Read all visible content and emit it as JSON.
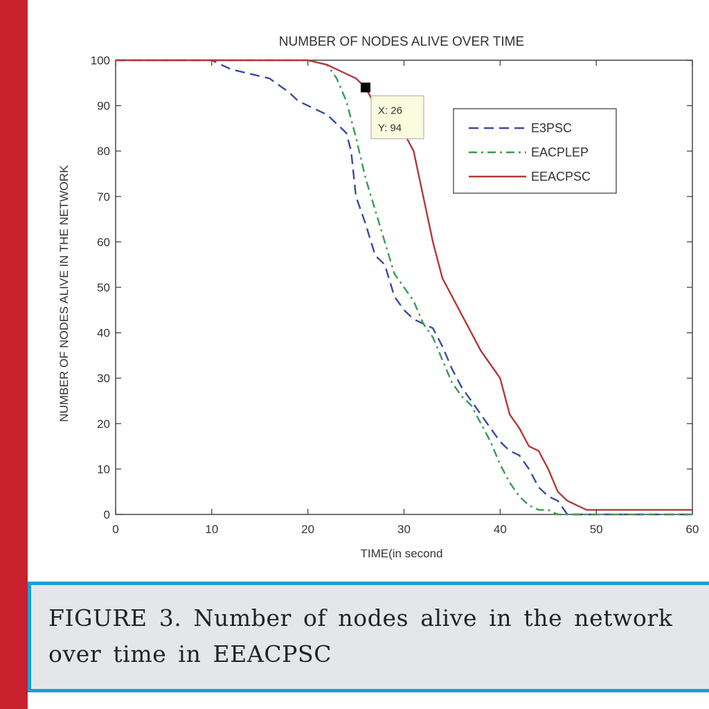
{
  "caption": {
    "line1": "FIGURE 3. Number of nodes alive in the network",
    "line2": "over time in EEACPSC"
  },
  "colors": {
    "left_bar": "#c8202c",
    "frame": "#1a9fd8",
    "caption_bg": "#e4e6ea"
  },
  "chart_data": {
    "type": "line",
    "title": "NUMBER OF NODES ALIVE OVER TIME",
    "xlabel": "TIME(in second",
    "ylabel": "NUMBER OF NODES ALIVE IN THE NETWORK",
    "xlim": [
      0,
      60
    ],
    "ylim": [
      0,
      100
    ],
    "xticks": [
      0,
      10,
      20,
      30,
      40,
      50,
      60
    ],
    "yticks": [
      0,
      10,
      20,
      30,
      40,
      50,
      60,
      70,
      80,
      90,
      100
    ],
    "grid": false,
    "legend_position": "top-right",
    "series": [
      {
        "name": "E3PSC",
        "color": "#3b4a9e",
        "style": "dashed",
        "x": [
          0,
          10,
          11,
          12,
          14,
          16,
          18,
          19,
          20,
          22,
          24,
          24.5,
          25,
          26,
          27,
          28,
          29,
          30,
          31,
          32,
          33,
          34,
          35,
          36,
          37,
          38,
          39,
          40,
          41,
          42,
          43,
          44,
          45,
          46,
          47,
          60
        ],
        "y": [
          100,
          100,
          99,
          98,
          97,
          96,
          93,
          91,
          90,
          88,
          84,
          80,
          70,
          64,
          57,
          55,
          48,
          45,
          43,
          42,
          41,
          37,
          32,
          28,
          25,
          22,
          19,
          16,
          14,
          13,
          10,
          6,
          4,
          3,
          0,
          0
        ]
      },
      {
        "name": "EACPLEP",
        "color": "#3a9a52",
        "style": "dashdot",
        "x": [
          0,
          20,
          22,
          23,
          24,
          25,
          26,
          27,
          28,
          29,
          30,
          31,
          32,
          33,
          34,
          35,
          36,
          37,
          38,
          39,
          40,
          41,
          42,
          43,
          44,
          45,
          46,
          60
        ],
        "y": [
          100,
          100,
          99,
          96,
          91,
          83,
          74,
          67,
          60,
          53,
          50,
          47,
          42,
          39,
          34,
          29,
          26,
          24,
          20,
          16,
          11,
          7,
          4,
          2,
          1,
          1,
          0,
          0
        ]
      },
      {
        "name": "EEACPSC",
        "color": "#b03a36",
        "style": "solid",
        "x": [
          0,
          20,
          22,
          24,
          25,
          26,
          27,
          28,
          29,
          30,
          31,
          32,
          33,
          34,
          35,
          36,
          37,
          38,
          39,
          40,
          41,
          42,
          43,
          44,
          45,
          46,
          47,
          48,
          49,
          50,
          60
        ],
        "y": [
          100,
          100,
          99,
          97,
          96,
          94,
          90,
          88,
          86,
          84,
          80,
          70,
          60,
          52,
          48,
          44,
          40,
          36,
          33,
          30,
          22,
          19,
          15,
          14,
          10,
          5,
          3,
          2,
          1,
          1,
          1
        ]
      }
    ],
    "datatip": {
      "x_label": "X: 26",
      "y_label": "Y: 94",
      "x": 26,
      "y": 94
    }
  }
}
